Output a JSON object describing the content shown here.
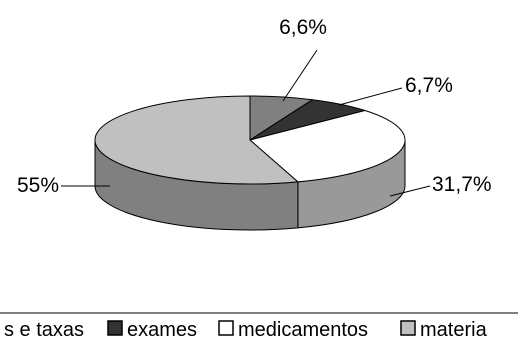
{
  "chart_data": {
    "type": "pie",
    "style": "3d",
    "slices": [
      {
        "label": "diárias e taxas",
        "legend_text": "s e taxas",
        "value": 6.6,
        "value_label": "6,6%",
        "color": "#808080",
        "side_color": "#6b6b6b"
      },
      {
        "label": "exames",
        "legend_text": "exames",
        "value": 6.7,
        "value_label": "6,7%",
        "color": "#333333",
        "side_color": "#262626"
      },
      {
        "label": "medicamentos",
        "legend_text": "medicamentos",
        "value": 31.7,
        "value_label": "31,7%",
        "color": "#ffffff",
        "side_color": "#999999"
      },
      {
        "label": "materiais",
        "legend_text": "materia",
        "value": 55,
        "value_label": "55%",
        "color": "#c0c0c0",
        "side_color": "#808080"
      }
    ],
    "legend_position": "bottom"
  }
}
